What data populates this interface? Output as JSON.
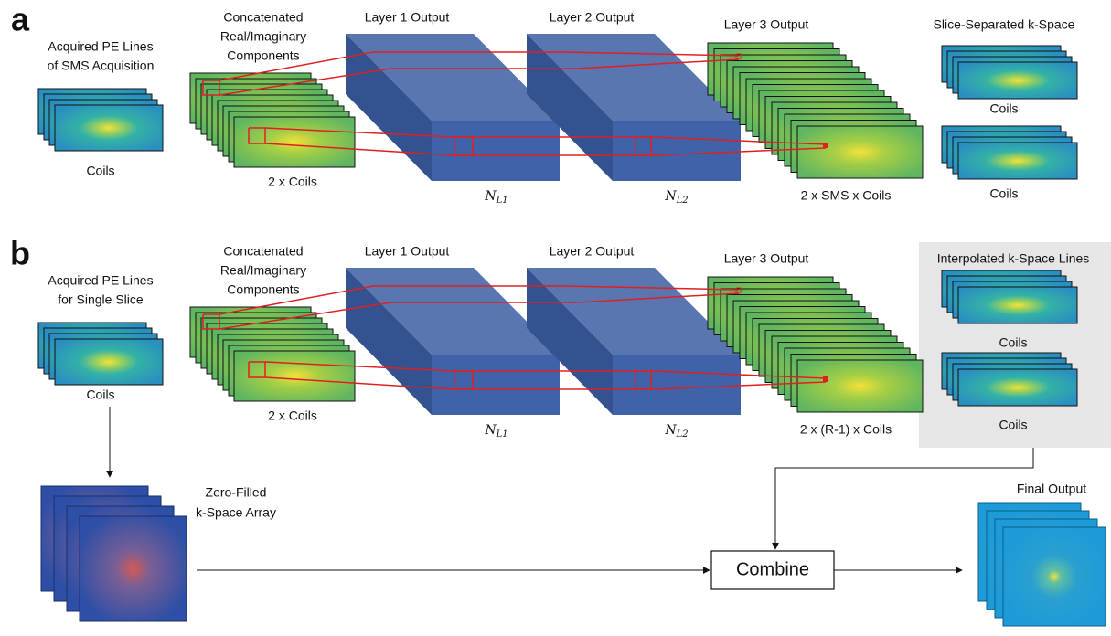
{
  "panels": [
    {
      "letter": "a",
      "input": {
        "label": [
          "Acquired PE Lines",
          "of SMS Acquisition"
        ],
        "caption": "Coils"
      },
      "concat": {
        "label": [
          "Concatenated",
          "Real/Imaginary",
          "Components"
        ],
        "caption": "2 x Coils"
      },
      "layer1": {
        "label": "Layer 1 Output",
        "size": {
          "base": "N",
          "sub": "L1"
        }
      },
      "layer2": {
        "label": "Layer 2 Output",
        "size": {
          "base": "N",
          "sub": "L2"
        }
      },
      "layer3": {
        "label": "Layer 3 Output",
        "caption": "2 x SMS x Coils"
      },
      "output": {
        "title": "Slice-Separated k-Space",
        "captions": [
          "Coils",
          "Coils"
        ]
      }
    },
    {
      "letter": "b",
      "input": {
        "label": [
          "Acquired PE Lines",
          "for Single Slice"
        ],
        "caption": "Coils"
      },
      "concat": {
        "label": [
          "Concatenated",
          "Real/Imaginary",
          "Components"
        ],
        "caption": "2 x Coils"
      },
      "layer1": {
        "label": "Layer 1 Output",
        "size": {
          "base": "N",
          "sub": "L1"
        }
      },
      "layer2": {
        "label": "Layer 2 Output",
        "size": {
          "base": "N",
          "sub": "L2"
        }
      },
      "layer3": {
        "label": "Layer 3 Output",
        "caption": "2 x (R-1) x Coils"
      },
      "output": {
        "title": "Interpolated k-Space Lines",
        "captions": [
          "Coils",
          "Coils"
        ]
      }
    }
  ],
  "zero_filled": {
    "label": [
      "Zero-Filled",
      "k-Space Array"
    ]
  },
  "combine": "Combine",
  "final_output": "Final Output"
}
